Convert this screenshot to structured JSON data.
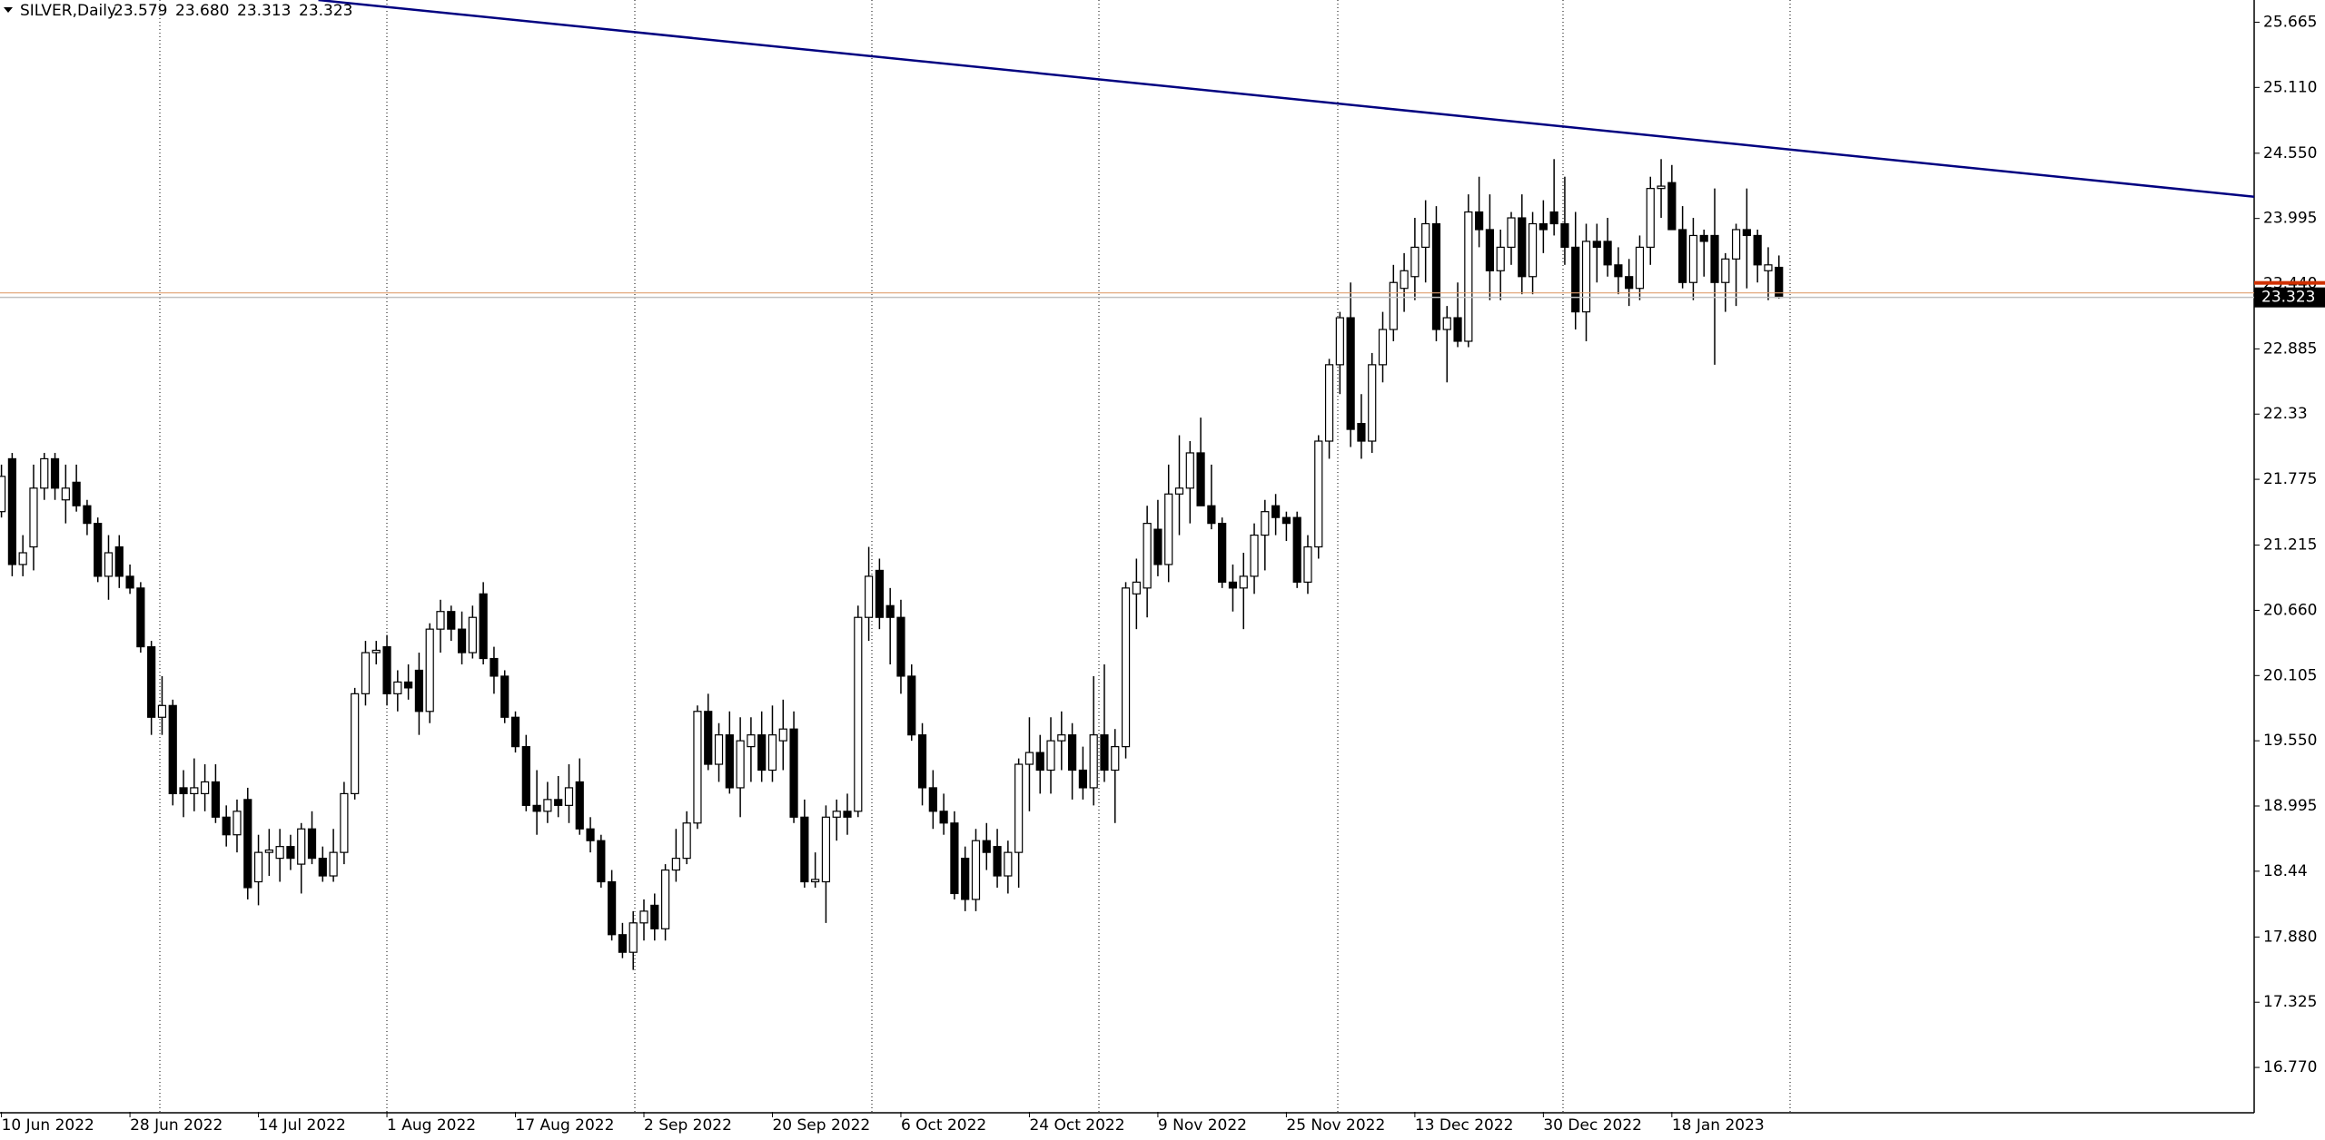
{
  "chart_data": {
    "type": "candlestick",
    "title": "SILVER,Daily",
    "last_bar_labels": [
      "23.579",
      "23.680",
      "23.313",
      "23.323"
    ],
    "categories": [
      "10 Jun 2022",
      null,
      null,
      null,
      null,
      null,
      null,
      null,
      null,
      null,
      null,
      null,
      "28 Jun 2022",
      null,
      null,
      null,
      null,
      null,
      null,
      null,
      null,
      null,
      null,
      null,
      "14 Jul 2022",
      null,
      null,
      null,
      null,
      null,
      null,
      null,
      null,
      null,
      null,
      null,
      "1 Aug 2022",
      null,
      null,
      null,
      null,
      null,
      null,
      null,
      null,
      null,
      null,
      null,
      "17 Aug 2022",
      null,
      null,
      null,
      null,
      null,
      null,
      null,
      null,
      null,
      null,
      null,
      "2 Sep 2022",
      null,
      null,
      null,
      null,
      null,
      null,
      null,
      null,
      null,
      null,
      null,
      "20 Sep 2022",
      null,
      null,
      null,
      null,
      null,
      null,
      null,
      null,
      null,
      null,
      null,
      "6 Oct 2022",
      null,
      null,
      null,
      null,
      null,
      null,
      null,
      null,
      null,
      null,
      null,
      "24 Oct 2022",
      null,
      null,
      null,
      null,
      null,
      null,
      null,
      null,
      null,
      null,
      null,
      "9 Nov 2022",
      null,
      null,
      null,
      null,
      null,
      null,
      null,
      null,
      null,
      null,
      null,
      "25 Nov 2022",
      null,
      null,
      null,
      null,
      null,
      null,
      null,
      null,
      null,
      null,
      null,
      "13 Dec 2022",
      null,
      null,
      null,
      null,
      null,
      null,
      null,
      null,
      null,
      null,
      null,
      "30 Dec 2022",
      null,
      null,
      null,
      null,
      null,
      null,
      null,
      null,
      null,
      null,
      null,
      "18 Jan 2023",
      null,
      null,
      null,
      null,
      null,
      null,
      null,
      null,
      null,
      null
    ],
    "open": [
      21.5,
      21.95,
      21.05,
      21.2,
      21.7,
      21.95,
      21.6,
      21.75,
      21.55,
      21.4,
      20.95,
      21.2,
      20.95,
      20.85,
      20.35,
      19.75,
      19.85,
      19.15,
      19.1,
      19.1,
      19.2,
      18.9,
      18.75,
      19.05,
      18.35,
      18.6,
      18.55,
      18.65,
      18.5,
      18.8,
      18.55,
      18.4,
      18.6,
      19.1,
      19.95,
      20.3,
      20.35,
      19.95,
      20.05,
      20.15,
      19.8,
      20.5,
      20.65,
      20.5,
      20.3,
      20.8,
      20.25,
      20.1,
      19.75,
      19.5,
      19.0,
      18.95,
      19.05,
      19.0,
      19.2,
      18.8,
      18.7,
      18.35,
      17.9,
      17.75,
      18.0,
      18.15,
      17.95,
      18.45,
      18.55,
      18.85,
      19.8,
      19.35,
      19.6,
      19.15,
      19.5,
      19.6,
      19.3,
      19.55,
      19.65,
      18.9,
      18.35,
      18.35,
      18.9,
      18.95,
      18.95,
      20.6,
      21.0,
      20.7,
      20.6,
      20.1,
      19.6,
      19.15,
      18.95,
      18.85,
      18.55,
      18.2,
      18.7,
      18.65,
      18.4,
      18.6,
      19.35,
      19.45,
      19.3,
      19.55,
      19.6,
      19.3,
      19.15,
      19.6,
      19.3,
      19.5,
      20.8,
      20.85,
      21.35,
      21.05,
      21.65,
      21.7,
      22.0,
      21.55,
      21.4,
      20.9,
      20.85,
      20.95,
      21.3,
      21.55,
      21.45,
      21.45,
      20.9,
      21.2,
      22.1,
      22.75,
      23.15,
      22.25,
      22.1,
      22.75,
      23.05,
      23.4,
      23.5,
      23.75,
      23.95,
      23.05,
      23.15,
      22.95,
      24.05,
      23.9,
      23.55,
      23.75,
      24.0,
      23.5,
      23.95,
      24.05,
      23.95,
      23.75,
      23.2,
      23.8,
      23.8,
      23.6,
      23.5,
      23.4,
      23.75,
      24.25,
      24.3,
      23.9,
      23.45,
      23.85,
      23.85,
      23.45,
      23.65,
      23.9,
      23.85,
      23.55,
      23.579
    ],
    "high": [
      21.9,
      22.0,
      21.3,
      21.9,
      22.0,
      22.0,
      21.9,
      21.9,
      21.6,
      21.45,
      21.3,
      21.3,
      21.05,
      20.9,
      20.4,
      20.1,
      19.9,
      19.3,
      19.4,
      19.35,
      19.35,
      19.0,
      19.05,
      19.15,
      18.75,
      18.8,
      18.8,
      18.75,
      18.85,
      18.95,
      18.65,
      18.8,
      19.2,
      20.0,
      20.4,
      20.4,
      20.45,
      20.15,
      20.2,
      20.3,
      20.55,
      20.75,
      20.7,
      20.65,
      20.7,
      20.9,
      20.35,
      20.15,
      19.8,
      19.6,
      19.3,
      19.2,
      19.25,
      19.35,
      19.4,
      18.9,
      18.75,
      18.45,
      18.0,
      18.1,
      18.2,
      18.25,
      18.5,
      18.8,
      18.95,
      19.85,
      19.95,
      19.7,
      19.8,
      19.75,
      19.75,
      19.8,
      19.85,
      19.9,
      19.8,
      19.05,
      18.6,
      19.0,
      19.05,
      19.1,
      20.7,
      21.2,
      21.1,
      20.85,
      20.75,
      20.2,
      19.7,
      19.3,
      19.1,
      18.95,
      18.65,
      18.8,
      18.85,
      18.8,
      18.7,
      19.4,
      19.75,
      19.6,
      19.75,
      19.8,
      19.7,
      19.5,
      20.1,
      20.2,
      19.65,
      20.9,
      21.1,
      21.55,
      21.6,
      21.9,
      22.15,
      22.1,
      22.3,
      21.9,
      21.45,
      21.05,
      21.15,
      21.4,
      21.6,
      21.65,
      21.5,
      21.5,
      21.3,
      22.15,
      22.8,
      23.2,
      23.45,
      22.5,
      22.85,
      23.2,
      23.6,
      23.7,
      24.0,
      24.15,
      24.1,
      23.25,
      23.45,
      24.2,
      24.35,
      24.2,
      23.9,
      24.05,
      24.2,
      24.05,
      24.15,
      24.5,
      24.35,
      24.05,
      23.95,
      23.95,
      24.0,
      23.75,
      23.65,
      23.85,
      24.35,
      24.5,
      24.45,
      24.1,
      24.0,
      23.9,
      24.25,
      23.7,
      23.95,
      24.25,
      23.9,
      23.75,
      23.68
    ],
    "low": [
      21.45,
      20.95,
      20.95,
      21.0,
      21.6,
      21.6,
      21.4,
      21.5,
      21.3,
      20.9,
      20.75,
      20.85,
      20.8,
      20.3,
      19.6,
      19.6,
      19.0,
      18.9,
      18.95,
      18.95,
      18.85,
      18.65,
      18.6,
      18.2,
      18.15,
      18.4,
      18.35,
      18.45,
      18.25,
      18.5,
      18.35,
      18.35,
      18.5,
      19.05,
      19.85,
      20.2,
      19.85,
      19.8,
      19.9,
      19.6,
      19.7,
      20.3,
      20.4,
      20.2,
      20.25,
      20.2,
      19.95,
      19.7,
      19.45,
      18.95,
      18.75,
      18.85,
      18.9,
      18.85,
      18.75,
      18.6,
      18.3,
      17.85,
      17.7,
      17.6,
      17.85,
      17.85,
      17.85,
      18.35,
      18.5,
      18.8,
      19.3,
      19.2,
      19.1,
      18.9,
      19.2,
      19.2,
      19.2,
      19.3,
      18.85,
      18.3,
      18.3,
      18.0,
      18.7,
      18.75,
      18.9,
      20.4,
      20.5,
      20.2,
      19.95,
      19.55,
      19.0,
      18.8,
      18.75,
      18.2,
      18.1,
      18.1,
      18.45,
      18.3,
      18.25,
      18.3,
      18.95,
      19.1,
      19.1,
      19.3,
      19.05,
      19.05,
      19.0,
      19.2,
      18.85,
      19.4,
      20.5,
      20.6,
      20.95,
      20.9,
      21.3,
      21.4,
      21.55,
      21.35,
      20.85,
      20.65,
      20.5,
      20.8,
      21.0,
      21.3,
      21.25,
      20.85,
      20.8,
      21.1,
      21.95,
      22.5,
      22.05,
      21.95,
      22.0,
      22.6,
      22.95,
      23.2,
      23.3,
      23.45,
      22.95,
      22.6,
      22.9,
      22.9,
      23.75,
      23.3,
      23.3,
      23.6,
      23.35,
      23.35,
      23.7,
      23.85,
      23.6,
      23.05,
      22.95,
      23.45,
      23.5,
      23.35,
      23.25,
      23.3,
      23.6,
      24.0,
      23.9,
      23.4,
      23.3,
      23.5,
      22.75,
      23.2,
      23.25,
      23.4,
      23.45,
      23.3,
      23.313
    ],
    "close": [
      21.8,
      21.05,
      21.15,
      21.7,
      21.95,
      21.7,
      21.7,
      21.55,
      21.4,
      20.95,
      21.15,
      20.95,
      20.85,
      20.35,
      19.75,
      19.85,
      19.1,
      19.1,
      19.15,
      19.2,
      18.9,
      18.75,
      18.95,
      18.3,
      18.6,
      18.62,
      18.65,
      18.55,
      18.8,
      18.55,
      18.4,
      18.6,
      19.1,
      19.95,
      20.3,
      20.32,
      19.95,
      20.05,
      20.0,
      19.8,
      20.5,
      20.65,
      20.5,
      20.3,
      20.6,
      20.25,
      20.1,
      19.75,
      19.5,
      19.0,
      18.95,
      19.05,
      19.0,
      19.15,
      18.8,
      18.7,
      18.35,
      17.9,
      17.75,
      18.0,
      18.1,
      17.95,
      18.45,
      18.55,
      18.85,
      19.8,
      19.35,
      19.6,
      19.15,
      19.55,
      19.6,
      19.3,
      19.6,
      19.65,
      18.9,
      18.35,
      18.37,
      18.9,
      18.95,
      18.9,
      20.6,
      20.95,
      20.6,
      20.6,
      20.1,
      19.6,
      19.15,
      18.95,
      18.85,
      18.25,
      18.2,
      18.7,
      18.6,
      18.4,
      18.6,
      19.35,
      19.45,
      19.3,
      19.55,
      19.6,
      19.3,
      19.15,
      19.6,
      19.3,
      19.5,
      20.85,
      20.9,
      21.4,
      21.05,
      21.65,
      21.7,
      22.0,
      21.55,
      21.4,
      20.9,
      20.85,
      20.95,
      21.3,
      21.5,
      21.45,
      21.4,
      20.9,
      21.2,
      22.1,
      22.75,
      23.15,
      22.2,
      22.1,
      22.75,
      23.05,
      23.45,
      23.55,
      23.75,
      23.95,
      23.05,
      23.15,
      22.95,
      24.05,
      23.9,
      23.55,
      23.75,
      24.0,
      23.5,
      23.95,
      23.9,
      23.95,
      23.75,
      23.2,
      23.8,
      23.75,
      23.6,
      23.5,
      23.4,
      23.75,
      24.25,
      24.27,
      23.9,
      23.45,
      23.85,
      23.8,
      23.45,
      23.65,
      23.9,
      23.85,
      23.6,
      23.6,
      23.323
    ],
    "bull_color": "#ffffff",
    "bear_color": "#000000",
    "candle_outline": "#000000",
    "trendline": {
      "color": "#000080",
      "x": [
        29.6,
        210.4
      ],
      "values": [
        25.854,
        24.18
      ]
    },
    "ylim": [
      16.392,
      25.854
    ],
    "yticks": [
      25.665,
      {
        "value": 25.11,
        "label": "25.110"
      },
      {
        "value": 24.55,
        "label": "24.550"
      },
      23.995,
      {
        "value": 23.44,
        "label": "23.440"
      },
      22.885,
      22.33,
      21.775,
      21.215,
      {
        "value": 20.66,
        "label": "20.660"
      },
      20.105,
      {
        "value": 19.55,
        "label": "19.550"
      },
      18.995,
      18.44,
      {
        "value": 17.88,
        "label": "17.880"
      },
      17.325,
      {
        "value": 16.77,
        "label": "16.770"
      }
    ],
    "grid": false
  }
}
